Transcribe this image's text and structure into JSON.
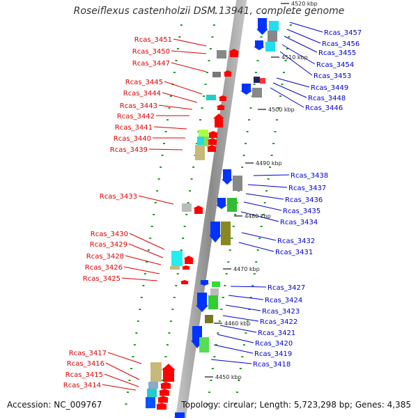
{
  "title": "Roseiflexus castenholzii DSM 13941, complete genome",
  "accession": "Accession: NC_009767",
  "topology": "Topology: circular; Length: 5,723,298 bp; Genes: 4,385",
  "colors": {
    "forward_label": "#dd0000",
    "reverse_label": "#0000cc",
    "backbone": "#888888",
    "tick": "#229922"
  },
  "scale_marks": [
    {
      "label": "4520 kbp",
      "kbp": 4520
    },
    {
      "label": "4510 kbp",
      "kbp": 4510
    },
    {
      "label": "4500 kbp",
      "kbp": 4500
    },
    {
      "label": "4490 kbp",
      "kbp": 4490
    },
    {
      "label": "4480 kbp",
      "kbp": 4480
    },
    {
      "label": "4470 kbp",
      "kbp": 4470
    },
    {
      "label": "4460 kbp",
      "kbp": 4460
    },
    {
      "label": "4450 kbp",
      "kbp": 4450
    }
  ],
  "forward_genes": [
    {
      "label": "Rcas_3451"
    },
    {
      "label": "Rcas_3450"
    },
    {
      "label": "Rcas_3447"
    },
    {
      "label": "Rcas_3445"
    },
    {
      "label": "Rcas_3444"
    },
    {
      "label": "Rcas_3443"
    },
    {
      "label": "Rcas_3442"
    },
    {
      "label": "Rcas_3441"
    },
    {
      "label": "Rcas_3440"
    },
    {
      "label": "Rcas_3439"
    },
    {
      "label": "Rcas_3433"
    },
    {
      "label": "Rcas_3430"
    },
    {
      "label": "Rcas_3429"
    },
    {
      "label": "Rcas_3428"
    },
    {
      "label": "Rcas_3426"
    },
    {
      "label": "Rcas_3425"
    },
    {
      "label": "Rcas_3417"
    },
    {
      "label": "Rcas_3416"
    },
    {
      "label": "Rcas_3415"
    },
    {
      "label": "Rcas_3414"
    }
  ],
  "reverse_genes": [
    {
      "label": "Rcas_3457"
    },
    {
      "label": "Rcas_3456"
    },
    {
      "label": "Rcas_3455"
    },
    {
      "label": "Rcas_3454"
    },
    {
      "label": "Rcas_3453"
    },
    {
      "label": "Rcas_3449"
    },
    {
      "label": "Rcas_3448"
    },
    {
      "label": "Rcas_3446"
    },
    {
      "label": "Rcas_3438"
    },
    {
      "label": "Rcas_3437"
    },
    {
      "label": "Rcas_3436"
    },
    {
      "label": "Rcas_3435"
    },
    {
      "label": "Rcas_3434"
    },
    {
      "label": "Rcas_3432"
    },
    {
      "label": "Rcas_3431"
    },
    {
      "label": "Rcas_3427"
    },
    {
      "label": "Rcas_3424"
    },
    {
      "label": "Rcas_3423"
    },
    {
      "label": "Rcas_3422"
    },
    {
      "label": "Rcas_3421"
    },
    {
      "label": "Rcas_3420"
    },
    {
      "label": "Rcas_3419"
    },
    {
      "label": "Rcas_3418"
    }
  ]
}
